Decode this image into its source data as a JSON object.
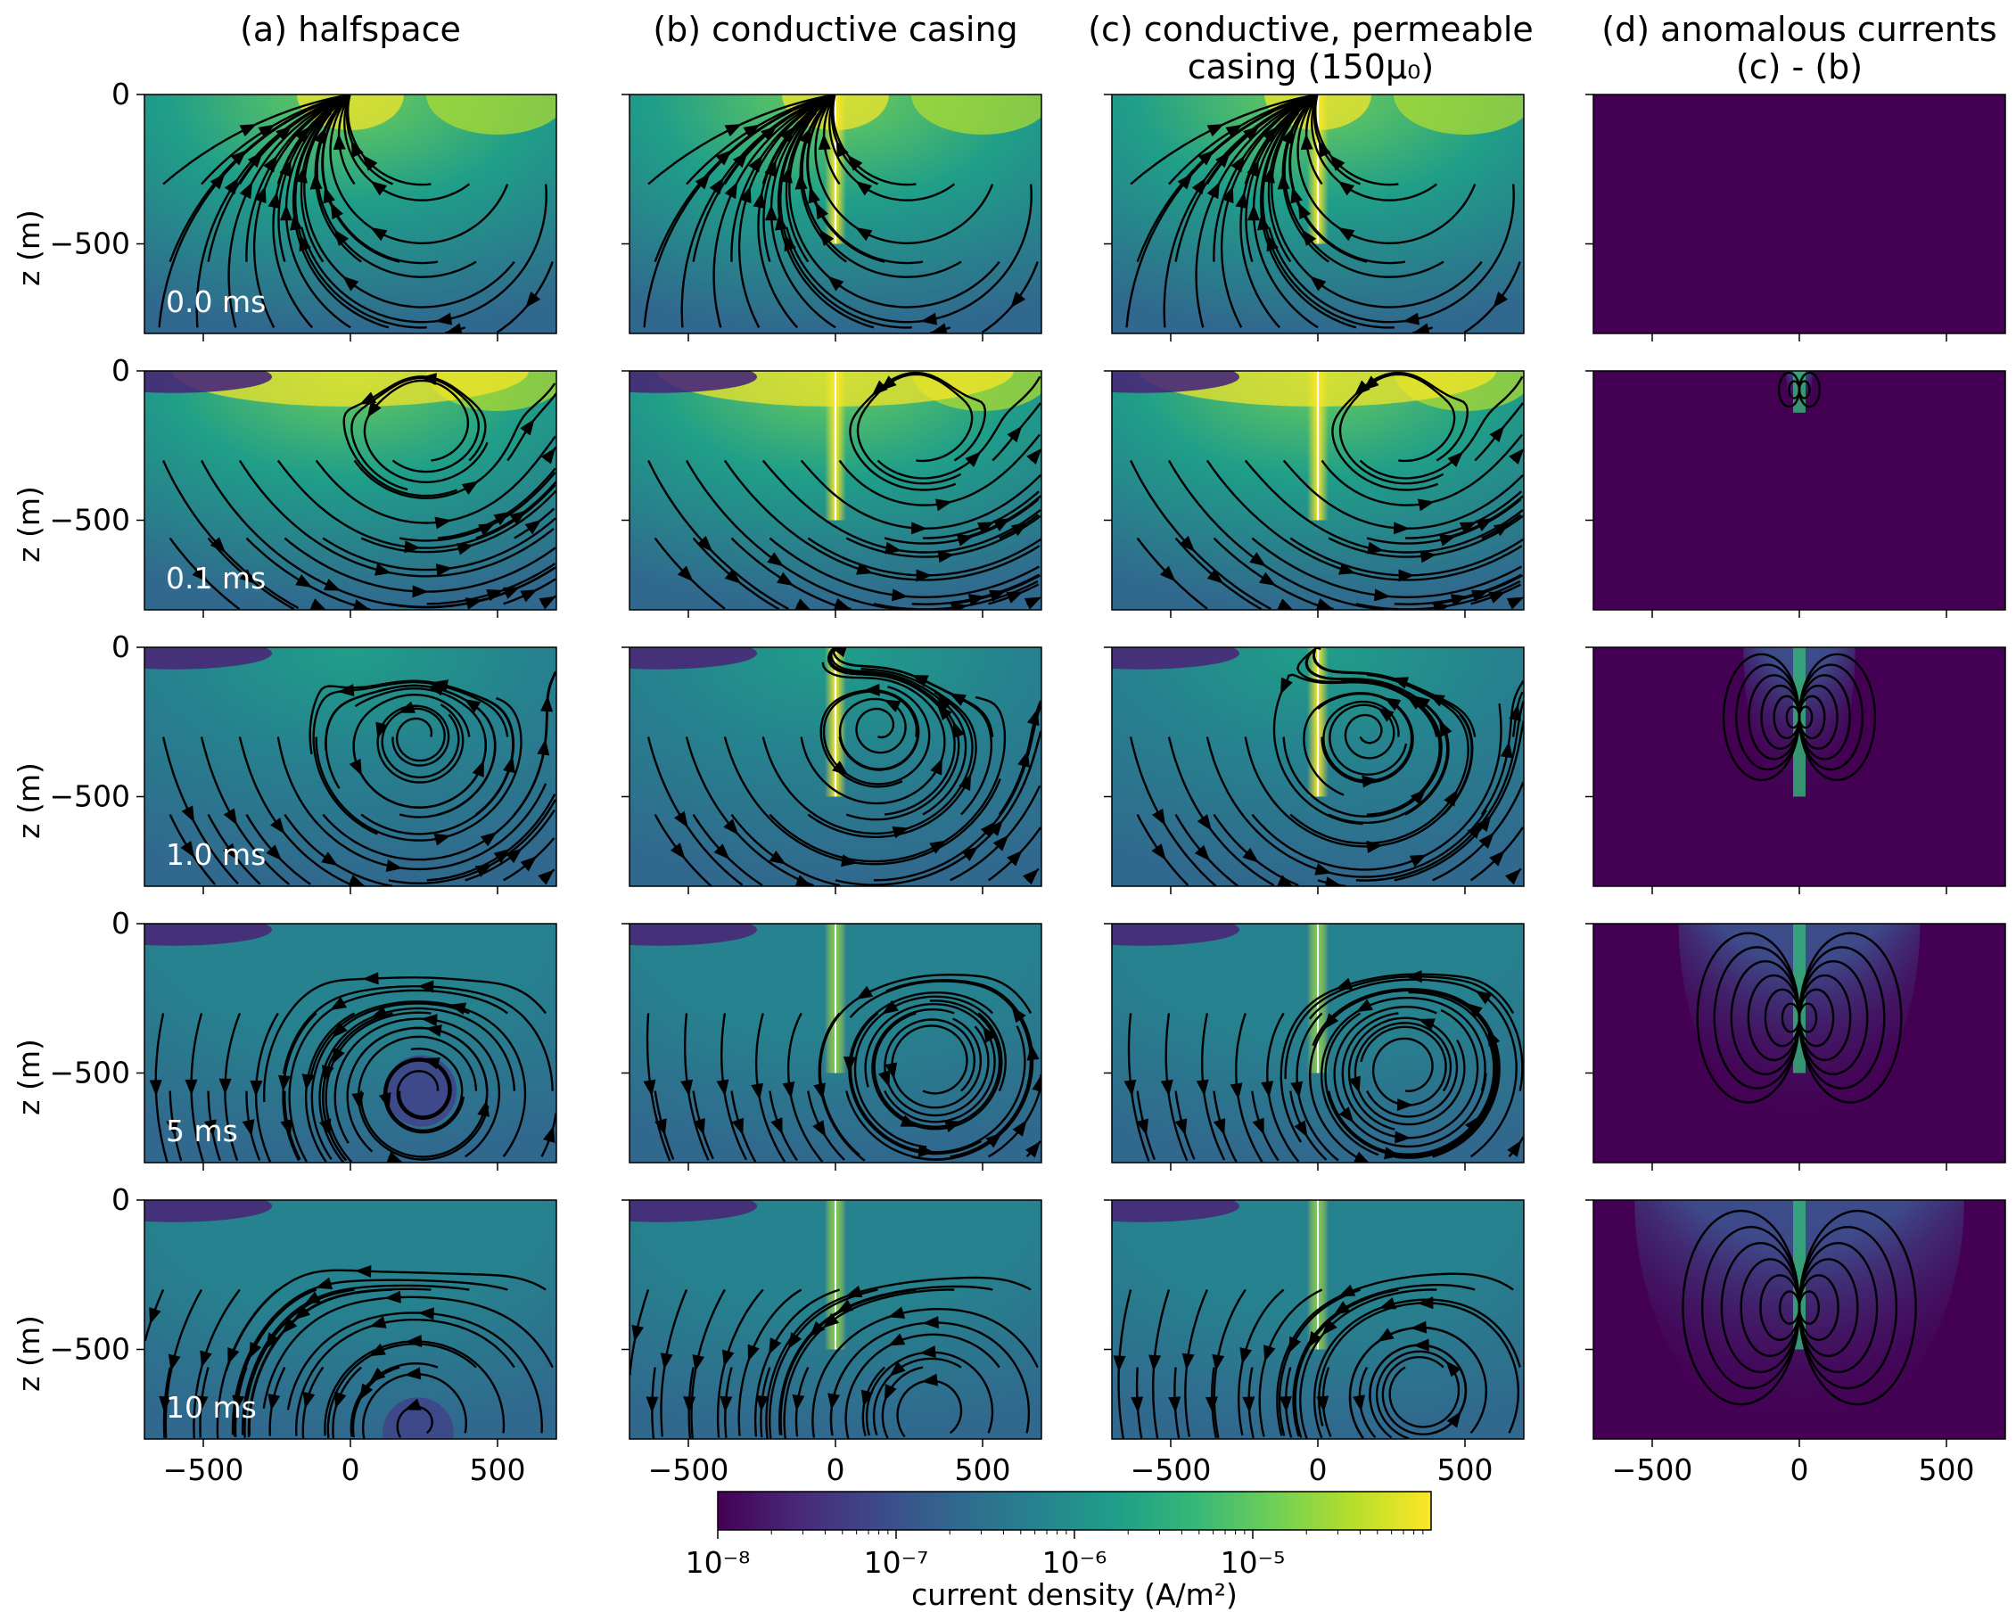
{
  "chart_data": {
    "type": "heatmap",
    "columns": [
      {
        "id": "a",
        "title_lines": [
          "(a) halfspace"
        ]
      },
      {
        "id": "b",
        "title_lines": [
          "(b) conductive casing"
        ]
      },
      {
        "id": "c",
        "title_lines": [
          "(c) conductive, permeable",
          "casing (150μ₀)"
        ]
      },
      {
        "id": "d",
        "title_lines": [
          "(d) anomalous currents",
          "(c) - (b)"
        ]
      }
    ],
    "times": [
      "0.0 ms",
      "0.1 ms",
      "1.0 ms",
      "5 ms",
      "10 ms"
    ],
    "ylabel": "z (m)",
    "xlim": [
      -700,
      700
    ],
    "ylim": [
      -800,
      0
    ],
    "xticks": [
      -500,
      0,
      500
    ],
    "xtick_labels": [
      "−500",
      "0",
      "500"
    ],
    "yticks": [
      0,
      -500
    ],
    "ytick_labels": [
      "0",
      "−500"
    ],
    "colorbar": {
      "label": "current density (A/m²)",
      "scale": "log",
      "range": [
        1e-08,
        0.0001
      ],
      "ticks": [
        "10⁻⁸",
        "10⁻⁷",
        "10⁻⁶",
        "10⁻⁵"
      ],
      "colormap": "viridis"
    },
    "colors": {
      "viridis": [
        "#440154",
        "#482878",
        "#3e4989",
        "#31688e",
        "#26828e",
        "#1f9e89",
        "#35b779",
        "#6ece58",
        "#b5de2b",
        "#fde725"
      ]
    }
  }
}
